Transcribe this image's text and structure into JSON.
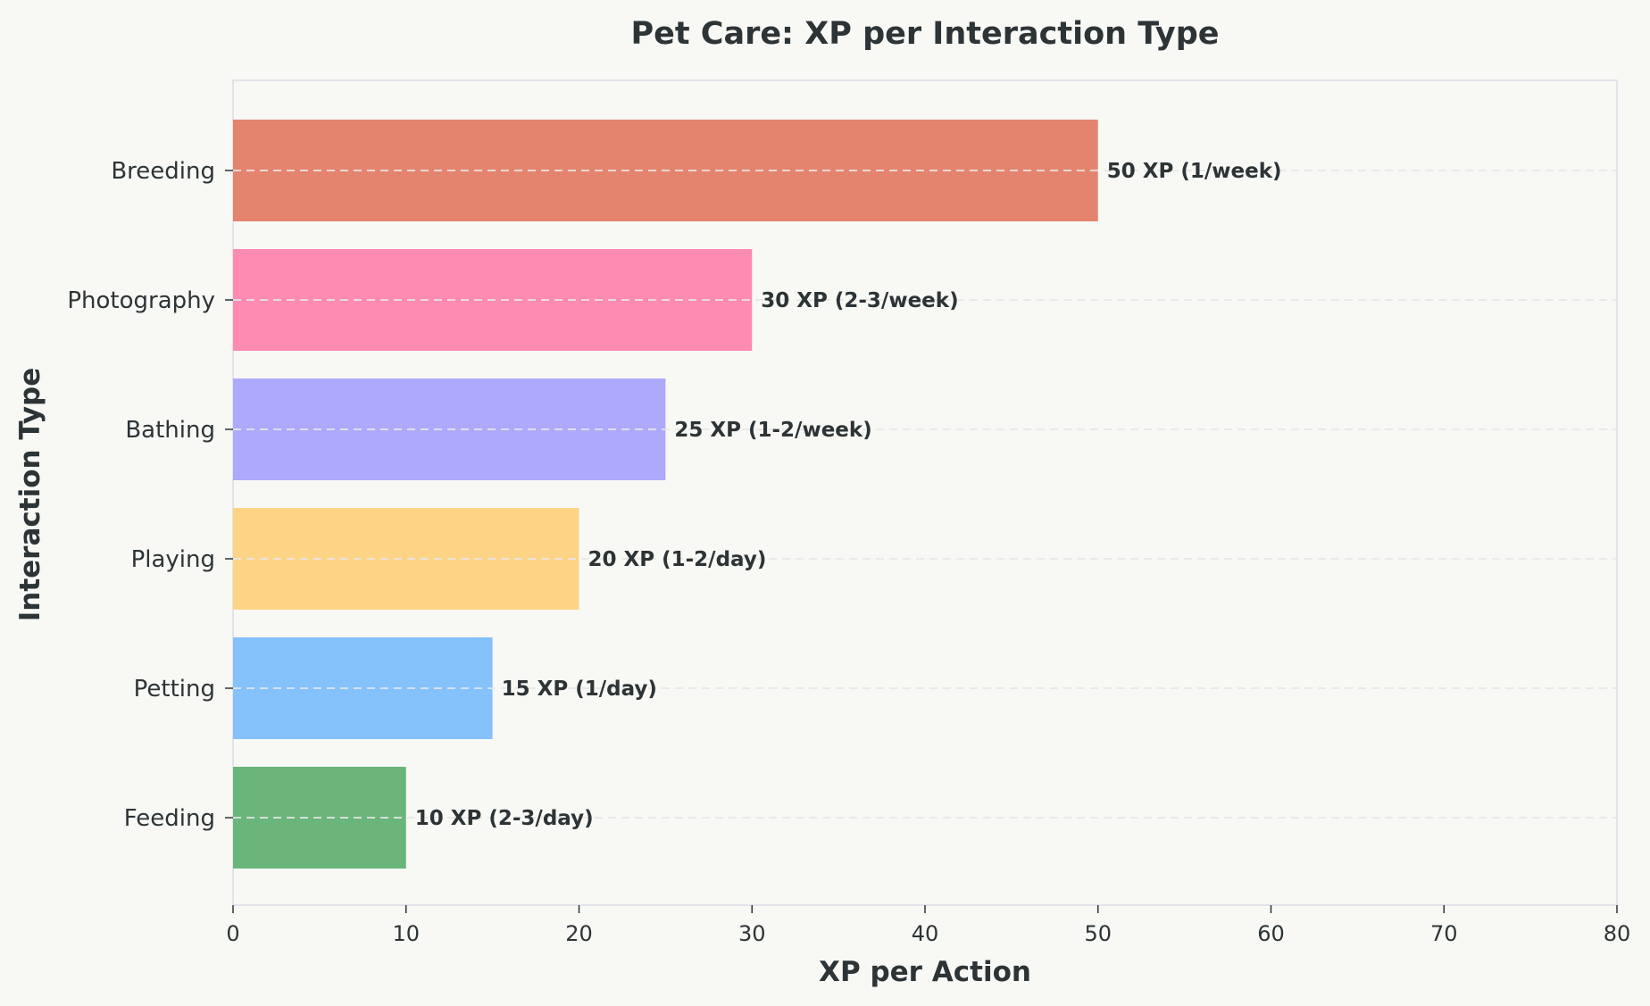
{
  "chart_data": {
    "type": "bar",
    "orientation": "horizontal",
    "title": "Pet Care: XP per Interaction Type",
    "xlabel": "XP per Action",
    "ylabel": "Interaction Type",
    "xlim": [
      0,
      80
    ],
    "xticks": [
      0,
      10,
      20,
      30,
      40,
      50,
      60,
      70,
      80
    ],
    "categories": [
      "Feeding",
      "Petting",
      "Playing",
      "Bathing",
      "Photography",
      "Breeding"
    ],
    "values": [
      10,
      15,
      20,
      25,
      30,
      50
    ],
    "data_labels": [
      "10 XP (2-3/day)",
      "15 XP (1/day)",
      "20 XP (1-2/day)",
      "25 XP (1-2/week)",
      "30 XP (2-3/week)",
      "50 XP (1/week)"
    ],
    "colors": [
      "#6ab57a",
      "#85c1fb",
      "#fdd385",
      "#ada9fb",
      "#fd8bb2",
      "#e5846e"
    ],
    "grid": true
  }
}
